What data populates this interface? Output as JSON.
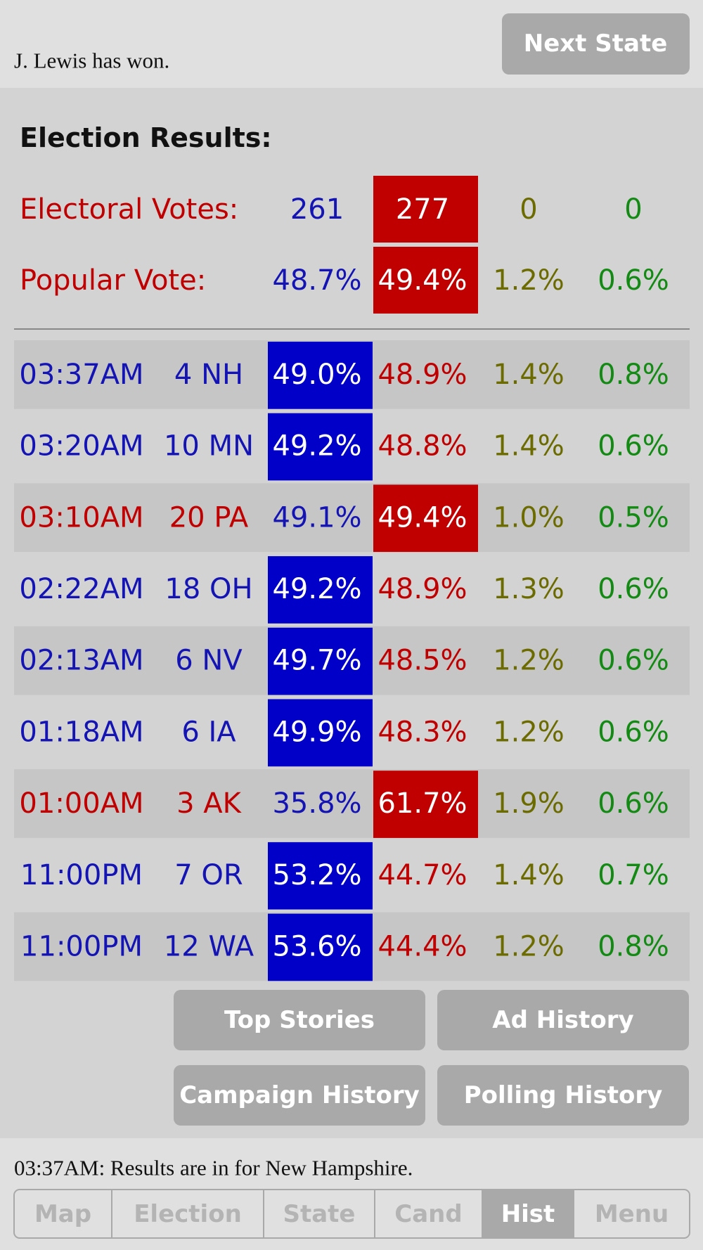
{
  "header": {
    "status": "J. Lewis has won.",
    "button": "Next State"
  },
  "results": {
    "title": "Election Results:",
    "summary": [
      {
        "label": "Electoral Votes:",
        "values": [
          "261",
          "277",
          "0",
          "0"
        ],
        "winner": 1
      },
      {
        "label": "Popular Vote:",
        "values": [
          "48.7%",
          "49.4%",
          "1.2%",
          "0.6%"
        ],
        "winner": 1
      }
    ],
    "rows": [
      {
        "time": "03:37AM",
        "state": "4 NH",
        "values": [
          "49.0%",
          "48.9%",
          "1.4%",
          "0.8%"
        ],
        "winner": 0
      },
      {
        "time": "03:20AM",
        "state": "10 MN",
        "values": [
          "49.2%",
          "48.8%",
          "1.4%",
          "0.6%"
        ],
        "winner": 0
      },
      {
        "time": "03:10AM",
        "state": "20 PA",
        "values": [
          "49.1%",
          "49.4%",
          "1.0%",
          "0.5%"
        ],
        "winner": 1
      },
      {
        "time": "02:22AM",
        "state": "18 OH",
        "values": [
          "49.2%",
          "48.9%",
          "1.3%",
          "0.6%"
        ],
        "winner": 0
      },
      {
        "time": "02:13AM",
        "state": "6 NV",
        "values": [
          "49.7%",
          "48.5%",
          "1.2%",
          "0.6%"
        ],
        "winner": 0
      },
      {
        "time": "01:18AM",
        "state": "6 IA",
        "values": [
          "49.9%",
          "48.3%",
          "1.2%",
          "0.6%"
        ],
        "winner": 0
      },
      {
        "time": "01:00AM",
        "state": "3 AK",
        "values": [
          "35.8%",
          "61.7%",
          "1.9%",
          "0.6%"
        ],
        "winner": 1
      },
      {
        "time": "11:00PM",
        "state": "7 OR",
        "values": [
          "53.2%",
          "44.7%",
          "1.4%",
          "0.7%"
        ],
        "winner": 0
      },
      {
        "time": "11:00PM",
        "state": "12 WA",
        "values": [
          "53.6%",
          "44.4%",
          "1.2%",
          "0.8%"
        ],
        "winner": 0
      }
    ]
  },
  "buttons": [
    "Top Stories",
    "Ad History",
    "Campaign History",
    "Polling History"
  ],
  "footer": {
    "message": "03:37AM: Results are in for New Hampshire.",
    "tabs": [
      "Map",
      "Election",
      "State",
      "Cand",
      "Hist",
      "Menu"
    ],
    "active": 4
  }
}
